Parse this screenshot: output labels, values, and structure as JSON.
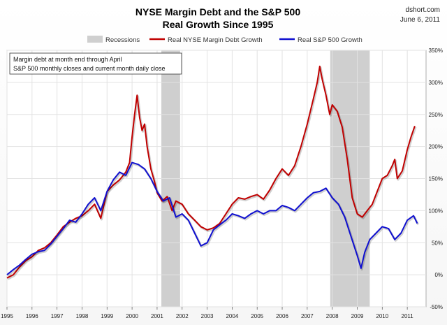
{
  "header": {
    "title_line1": "NYSE Margin Debt and the S&P 500",
    "title_line2": "Real Growth Since 1995",
    "source": "dshort.com",
    "date": "June 6, 2011"
  },
  "annotation": {
    "line1": "Margin debt at month end through April",
    "line2": "S&P 500 monthly closes and current month daily close"
  },
  "colors": {
    "margin_debt": "#c00000",
    "sp500": "#1010d0",
    "recession": "#cfcfcf",
    "grid": "#e2e2e2"
  },
  "chart_data": {
    "type": "line",
    "title": "NYSE Margin Debt and the S&P 500 Real Growth Since 1995",
    "xlim": [
      1995,
      2011.75
    ],
    "ylim": [
      -50,
      350
    ],
    "y_tick_values": [
      -50,
      0,
      50,
      100,
      150,
      200,
      250,
      300,
      350
    ],
    "y_tick_labels": [
      "-50%",
      "0%",
      "50%",
      "100%",
      "150%",
      "200%",
      "250%",
      "300%",
      "350%"
    ],
    "x_tick_values": [
      1995,
      1996,
      1997,
      1998,
      1999,
      2000,
      2001,
      2002,
      2003,
      2004,
      2005,
      2006,
      2007,
      2008,
      2009,
      2010,
      2011
    ],
    "x_tick_labels": [
      "1995",
      "1996",
      "1997",
      "1998",
      "1999",
      "2000",
      "2001",
      "2002",
      "2003",
      "2004",
      "2005",
      "2006",
      "2007",
      "2008",
      "2009",
      "2010",
      "2011"
    ],
    "grid": true,
    "legend_position": "top",
    "recessions": [
      {
        "name": "Recessions",
        "start": 2001.17,
        "end": 2001.92
      },
      {
        "name": "Recessions",
        "start": 2007.92,
        "end": 2009.5
      }
    ],
    "series": [
      {
        "name": "Real NYSE Margin Debt Growth",
        "color": "#c00000",
        "x": [
          1995.0,
          1995.25,
          1995.5,
          1995.75,
          1996.0,
          1996.25,
          1996.5,
          1996.75,
          1997.0,
          1997.25,
          1997.5,
          1997.75,
          1998.0,
          1998.25,
          1998.5,
          1998.75,
          1999.0,
          1999.25,
          1999.5,
          1999.75,
          1999.9,
          2000.0,
          2000.1,
          2000.2,
          2000.3,
          2000.4,
          2000.5,
          2000.6,
          2000.75,
          2000.9,
          2001.0,
          2001.2,
          2001.4,
          2001.6,
          2001.75,
          2002.0,
          2002.25,
          2002.5,
          2002.75,
          2003.0,
          2003.25,
          2003.5,
          2003.75,
          2004.0,
          2004.25,
          2004.5,
          2004.75,
          2005.0,
          2005.25,
          2005.5,
          2005.75,
          2006.0,
          2006.25,
          2006.5,
          2006.75,
          2007.0,
          2007.25,
          2007.4,
          2007.5,
          2007.6,
          2007.75,
          2007.9,
          2008.0,
          2008.2,
          2008.4,
          2008.6,
          2008.8,
          2009.0,
          2009.2,
          2009.4,
          2009.6,
          2009.8,
          2010.0,
          2010.2,
          2010.4,
          2010.5,
          2010.6,
          2010.8,
          2011.0,
          2011.15,
          2011.3
        ],
        "values": [
          -5,
          0,
          12,
          22,
          28,
          38,
          42,
          50,
          62,
          75,
          82,
          88,
          92,
          100,
          110,
          88,
          130,
          140,
          148,
          160,
          175,
          215,
          250,
          280,
          245,
          225,
          235,
          200,
          165,
          145,
          128,
          115,
          122,
          100,
          115,
          110,
          95,
          85,
          75,
          70,
          73,
          80,
          95,
          110,
          120,
          118,
          122,
          125,
          118,
          132,
          150,
          165,
          155,
          170,
          200,
          235,
          275,
          300,
          325,
          305,
          280,
          250,
          265,
          255,
          230,
          180,
          120,
          95,
          90,
          100,
          110,
          130,
          150,
          155,
          170,
          180,
          150,
          162,
          195,
          215,
          232
        ]
      },
      {
        "name": "Real S&P 500 Growth",
        "color": "#1010d0",
        "x": [
          1995.0,
          1995.25,
          1995.5,
          1995.75,
          1996.0,
          1996.25,
          1996.5,
          1996.75,
          1997.0,
          1997.25,
          1997.5,
          1997.75,
          1998.0,
          1998.25,
          1998.5,
          1998.75,
          1999.0,
          1999.25,
          1999.5,
          1999.75,
          2000.0,
          2000.25,
          2000.5,
          2000.75,
          2001.0,
          2001.25,
          2001.5,
          2001.75,
          2002.0,
          2002.25,
          2002.5,
          2002.75,
          2003.0,
          2003.25,
          2003.5,
          2003.75,
          2004.0,
          2004.25,
          2004.5,
          2004.75,
          2005.0,
          2005.25,
          2005.5,
          2005.75,
          2006.0,
          2006.25,
          2006.5,
          2006.75,
          2007.0,
          2007.25,
          2007.5,
          2007.75,
          2008.0,
          2008.25,
          2008.5,
          2008.75,
          2009.0,
          2009.15,
          2009.3,
          2009.5,
          2009.75,
          2010.0,
          2010.25,
          2010.5,
          2010.75,
          2011.0,
          2011.25,
          2011.4
        ],
        "values": [
          0,
          8,
          15,
          24,
          32,
          36,
          38,
          48,
          60,
          72,
          85,
          82,
          95,
          110,
          120,
          100,
          130,
          148,
          160,
          155,
          175,
          172,
          165,
          150,
          130,
          115,
          120,
          90,
          95,
          85,
          65,
          45,
          50,
          70,
          78,
          85,
          95,
          92,
          88,
          95,
          100,
          95,
          100,
          100,
          108,
          105,
          100,
          110,
          120,
          128,
          130,
          135,
          120,
          110,
          90,
          60,
          30,
          10,
          35,
          55,
          65,
          75,
          72,
          55,
          65,
          85,
          92,
          80
        ]
      }
    ]
  }
}
